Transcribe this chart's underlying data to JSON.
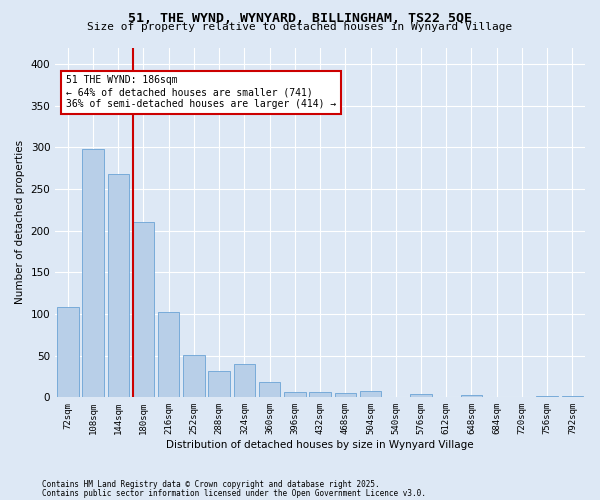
{
  "title1": "51, THE WYND, WYNYARD, BILLINGHAM, TS22 5QE",
  "title2": "Size of property relative to detached houses in Wynyard Village",
  "xlabel": "Distribution of detached houses by size in Wynyard Village",
  "ylabel": "Number of detached properties",
  "categories": [
    "72sqm",
    "108sqm",
    "144sqm",
    "180sqm",
    "216sqm",
    "252sqm",
    "288sqm",
    "324sqm",
    "360sqm",
    "396sqm",
    "432sqm",
    "468sqm",
    "504sqm",
    "540sqm",
    "576sqm",
    "612sqm",
    "648sqm",
    "684sqm",
    "720sqm",
    "756sqm",
    "792sqm"
  ],
  "values": [
    108,
    298,
    268,
    211,
    103,
    51,
    32,
    40,
    18,
    6,
    6,
    5,
    8,
    0,
    4,
    0,
    3,
    0,
    0,
    2,
    2
  ],
  "bar_color": "#b8cfe8",
  "bar_edge_color": "#6ba3d6",
  "vline_color": "#cc0000",
  "annotation_title": "51 THE WYND: 186sqm",
  "annotation_line1": "← 64% of detached houses are smaller (741)",
  "annotation_line2": "36% of semi-detached houses are larger (414) →",
  "annotation_box_color": "#cc0000",
  "background_color": "#dde8f5",
  "plot_bg_color": "#dde8f5",
  "footer1": "Contains HM Land Registry data © Crown copyright and database right 2025.",
  "footer2": "Contains public sector information licensed under the Open Government Licence v3.0.",
  "ylim": [
    0,
    420
  ],
  "yticks": [
    0,
    50,
    100,
    150,
    200,
    250,
    300,
    350,
    400
  ]
}
